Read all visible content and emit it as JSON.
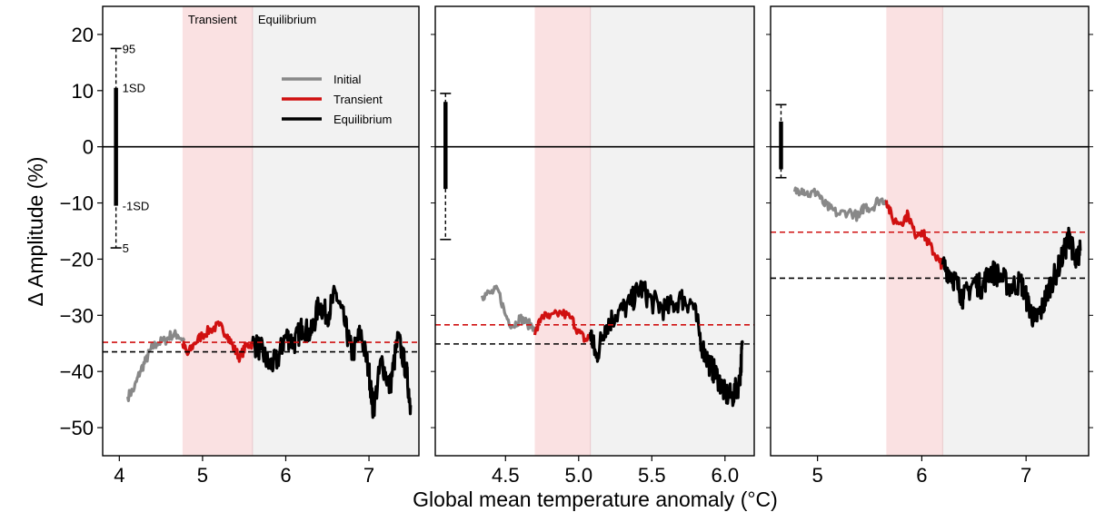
{
  "figure": {
    "ylabel": "Δ Amplitude (%)",
    "xlabel": "Global mean temperature anomaly (°C)"
  },
  "chart_data": [
    {
      "type": "line",
      "panel": 1,
      "xlim": [
        3.8,
        7.6
      ],
      "ylim": [
        -55,
        25
      ],
      "x_ticks": [
        4,
        5,
        6,
        7
      ],
      "x_tick_labels": [
        "4",
        "5",
        "6",
        "7"
      ],
      "y_ticks": [
        20,
        10,
        0,
        -10,
        -20,
        -30,
        -40,
        -50
      ],
      "y_tick_labels": [
        "20",
        "10",
        "0",
        "−10",
        "−20",
        "−30",
        "−40",
        "−50"
      ],
      "regions": [
        {
          "name": "Transient",
          "x0": 4.76,
          "x1": 5.6,
          "color": "#fae1e2",
          "label": "Transient"
        },
        {
          "name": "Equilibrium",
          "x0": 5.6,
          "x1": 7.6,
          "color": "#f2f2f2",
          "label": "Equilibrium"
        }
      ],
      "zero_line": 0,
      "hlines": [
        {
          "name": "transient-mean",
          "y": -34.8,
          "color": "#d01010"
        },
        {
          "name": "equilibrium-mean",
          "y": -36.5,
          "color": "#000000"
        }
      ],
      "range_bar": {
        "x": 3.96,
        "p95": 17.5,
        "sd_plus": 10.5,
        "sd_minus": -10.5,
        "p5": -18,
        "labels": {
          "p95": "95",
          "sd_plus": "1SD",
          "sd_minus": "-1SD",
          "p5": "5"
        }
      },
      "legend": {
        "position": "upper-center",
        "entries": [
          {
            "label": "Initial",
            "color": "#888888"
          },
          {
            "label": "Transient",
            "color": "#d01010"
          },
          {
            "label": "Equilibrium",
            "color": "#000000"
          }
        ]
      },
      "series": [
        {
          "name": "Initial",
          "color": "#888888",
          "x0": 4.1,
          "x1": 4.78,
          "points": [
            [
              4.1,
              -44.5
            ],
            [
              4.18,
              -43
            ],
            [
              4.25,
              -40
            ],
            [
              4.32,
              -38
            ],
            [
              4.38,
              -36
            ],
            [
              4.45,
              -35
            ],
            [
              4.55,
              -34.5
            ],
            [
              4.62,
              -33.5
            ],
            [
              4.7,
              -33.5
            ],
            [
              4.78,
              -34.5
            ]
          ]
        },
        {
          "name": "Transient",
          "color": "#d01010",
          "x0": 4.76,
          "x1": 5.6,
          "points": [
            [
              4.76,
              -35
            ],
            [
              4.82,
              -37
            ],
            [
              4.9,
              -35
            ],
            [
              5.0,
              -33.5
            ],
            [
              5.1,
              -32.5
            ],
            [
              5.2,
              -31.8
            ],
            [
              5.3,
              -33.5
            ],
            [
              5.38,
              -36
            ],
            [
              5.45,
              -37.5
            ],
            [
              5.52,
              -35.5
            ],
            [
              5.6,
              -35
            ]
          ]
        },
        {
          "name": "Equilibrium",
          "color": "#000000",
          "x0": 5.6,
          "x1": 7.5,
          "points": [
            [
              5.6,
              -35
            ],
            [
              5.7,
              -36
            ],
            [
              5.8,
              -39
            ],
            [
              5.9,
              -38
            ],
            [
              6.0,
              -33.5
            ],
            [
              6.1,
              -35
            ],
            [
              6.2,
              -32
            ],
            [
              6.3,
              -33.5
            ],
            [
              6.4,
              -28
            ],
            [
              6.5,
              -30
            ],
            [
              6.6,
              -26
            ],
            [
              6.7,
              -31
            ],
            [
              6.8,
              -37
            ],
            [
              6.9,
              -33
            ],
            [
              7.0,
              -40
            ],
            [
              7.05,
              -47
            ],
            [
              7.15,
              -38
            ],
            [
              7.25,
              -43
            ],
            [
              7.35,
              -34
            ],
            [
              7.45,
              -40
            ],
            [
              7.5,
              -46
            ]
          ]
        }
      ]
    },
    {
      "type": "line",
      "panel": 2,
      "xlim": [
        4.02,
        6.2
      ],
      "ylim": [
        -55,
        25
      ],
      "x_ticks": [
        4.5,
        5.0,
        5.5,
        6.0
      ],
      "x_tick_labels": [
        "4.5",
        "5.0",
        "5.5",
        "6.0"
      ],
      "regions": [
        {
          "name": "Transient",
          "x0": 4.7,
          "x1": 5.08,
          "color": "#fae1e2"
        },
        {
          "name": "Equilibrium",
          "x0": 5.08,
          "x1": 6.2,
          "color": "#f2f2f2"
        }
      ],
      "zero_line": 0,
      "hlines": [
        {
          "name": "transient-mean",
          "y": -31.7,
          "color": "#d01010"
        },
        {
          "name": "equilibrium-mean",
          "y": -35.1,
          "color": "#000000"
        }
      ],
      "range_bar": {
        "x": 4.09,
        "p95": 9.5,
        "sd_plus": 8,
        "sd_minus": -7.5,
        "p5": -16.5
      },
      "series": [
        {
          "name": "Initial",
          "color": "#888888",
          "x0": 4.34,
          "x1": 4.7,
          "points": [
            [
              4.34,
              -26.5
            ],
            [
              4.4,
              -26
            ],
            [
              4.45,
              -25.5
            ],
            [
              4.5,
              -30
            ],
            [
              4.55,
              -32
            ],
            [
              4.6,
              -30.5
            ],
            [
              4.65,
              -31.5
            ],
            [
              4.7,
              -32
            ]
          ]
        },
        {
          "name": "Transient",
          "color": "#d01010",
          "x0": 4.7,
          "x1": 5.08,
          "points": [
            [
              4.7,
              -33.5
            ],
            [
              4.75,
              -30
            ],
            [
              4.8,
              -30.5
            ],
            [
              4.88,
              -29.5
            ],
            [
              4.95,
              -30.5
            ],
            [
              5.0,
              -33
            ],
            [
              5.05,
              -34.5
            ],
            [
              5.08,
              -33.5
            ]
          ]
        },
        {
          "name": "Equilibrium",
          "color": "#000000",
          "x0": 5.08,
          "x1": 6.12,
          "points": [
            [
              5.08,
              -33
            ],
            [
              5.12,
              -37.5
            ],
            [
              5.18,
              -32
            ],
            [
              5.25,
              -30
            ],
            [
              5.35,
              -28
            ],
            [
              5.42,
              -25
            ],
            [
              5.5,
              -27.5
            ],
            [
              5.6,
              -29
            ],
            [
              5.7,
              -27
            ],
            [
              5.78,
              -28
            ],
            [
              5.85,
              -36
            ],
            [
              5.9,
              -39
            ],
            [
              5.95,
              -41
            ],
            [
              6.0,
              -44
            ],
            [
              6.05,
              -44.5
            ],
            [
              6.1,
              -42
            ],
            [
              6.12,
              -35
            ]
          ]
        }
      ]
    },
    {
      "type": "line",
      "panel": 3,
      "xlim": [
        4.55,
        7.6
      ],
      "ylim": [
        -55,
        25
      ],
      "x_ticks": [
        5,
        6,
        7
      ],
      "x_tick_labels": [
        "5",
        "6",
        "7"
      ],
      "regions": [
        {
          "name": "Transient",
          "x0": 5.66,
          "x1": 6.2,
          "color": "#fae1e2"
        },
        {
          "name": "Equilibrium",
          "x0": 6.2,
          "x1": 7.6,
          "color": "#f2f2f2"
        }
      ],
      "zero_line": 0,
      "hlines": [
        {
          "name": "transient-mean",
          "y": -15.2,
          "color": "#d01010"
        },
        {
          "name": "equilibrium-mean",
          "y": -23.4,
          "color": "#000000"
        }
      ],
      "range_bar": {
        "x": 4.65,
        "p95": 7.5,
        "sd_plus": 4.5,
        "sd_minus": -4,
        "p5": -5.5
      },
      "series": [
        {
          "name": "Initial",
          "color": "#888888",
          "x0": 4.78,
          "x1": 5.66,
          "points": [
            [
              4.78,
              -8
            ],
            [
              4.85,
              -7.5
            ],
            [
              4.92,
              -8.5
            ],
            [
              5.0,
              -8
            ],
            [
              5.05,
              -10
            ],
            [
              5.12,
              -11
            ],
            [
              5.2,
              -12
            ],
            [
              5.3,
              -11.5
            ],
            [
              5.4,
              -12.5
            ],
            [
              5.45,
              -10.5
            ],
            [
              5.52,
              -11
            ],
            [
              5.58,
              -9.5
            ],
            [
              5.66,
              -9.5
            ]
          ]
        },
        {
          "name": "Transient",
          "color": "#d01010",
          "x0": 5.66,
          "x1": 6.2,
          "points": [
            [
              5.66,
              -9.5
            ],
            [
              5.72,
              -13
            ],
            [
              5.8,
              -13.5
            ],
            [
              5.87,
              -12
            ],
            [
              5.93,
              -15.5
            ],
            [
              6.0,
              -15
            ],
            [
              6.06,
              -17
            ],
            [
              6.12,
              -19
            ],
            [
              6.17,
              -20.5
            ],
            [
              6.2,
              -21
            ]
          ]
        },
        {
          "name": "Equilibrium",
          "color": "#000000",
          "x0": 6.2,
          "x1": 7.52,
          "points": [
            [
              6.2,
              -21
            ],
            [
              6.28,
              -22.5
            ],
            [
              6.35,
              -25
            ],
            [
              6.4,
              -27
            ],
            [
              6.5,
              -24
            ],
            [
              6.58,
              -25
            ],
            [
              6.65,
              -22
            ],
            [
              6.75,
              -23
            ],
            [
              6.85,
              -25
            ],
            [
              6.95,
              -24
            ],
            [
              7.02,
              -28
            ],
            [
              7.08,
              -31
            ],
            [
              7.15,
              -29
            ],
            [
              7.22,
              -25
            ],
            [
              7.3,
              -22
            ],
            [
              7.38,
              -18
            ],
            [
              7.42,
              -15.5
            ],
            [
              7.47,
              -21
            ],
            [
              7.52,
              -18.5
            ]
          ]
        }
      ]
    }
  ]
}
